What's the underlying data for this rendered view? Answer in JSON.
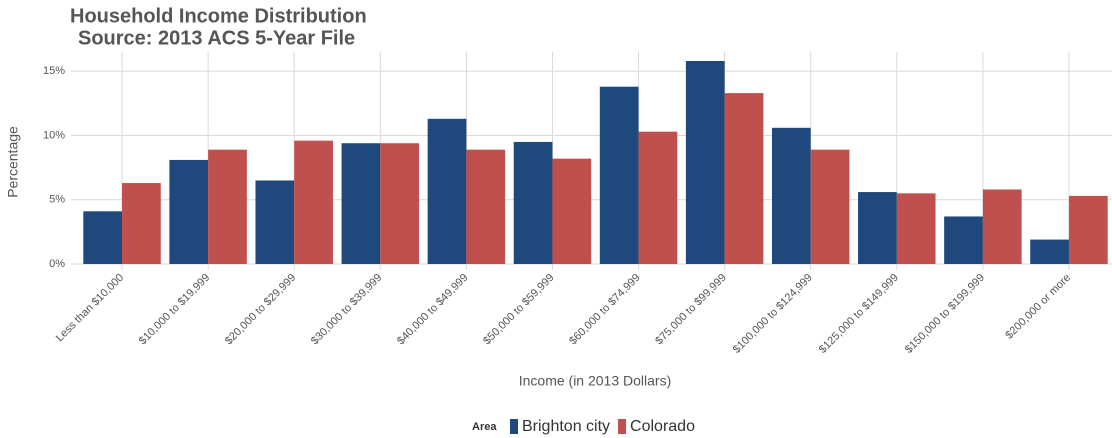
{
  "chart_data": {
    "type": "bar",
    "title": "Household Income Distribution",
    "subtitle": "Source: 2013 ACS 5-Year File",
    "x_label": "Income (in 2013 Dollars)",
    "y_label": "Percentage",
    "legend_title": "Area",
    "categories": [
      "Less than $10,000",
      "$10,000 to $19,999",
      "$20,000 to $29,999",
      "$30,000 to $39,999",
      "$40,000 to $49,999",
      "$50,000 to $59,999",
      "$60,000 to $74,999",
      "$75,000 to $99,999",
      "$100,000 to $124,999",
      "$125,000 to $149,999",
      "$150,000 to $199,999",
      "$200,000 or more"
    ],
    "series": [
      {
        "name": "Brighton city",
        "color": "#1f497d",
        "values": [
          4.1,
          8.1,
          6.5,
          9.4,
          11.3,
          9.5,
          13.8,
          15.8,
          10.6,
          5.6,
          3.7,
          1.9
        ]
      },
      {
        "name": "Colorado",
        "color": "#c0504d",
        "values": [
          6.3,
          8.9,
          9.6,
          9.4,
          8.9,
          8.2,
          10.3,
          13.3,
          8.9,
          5.5,
          5.8,
          5.3
        ]
      }
    ],
    "ylim": [
      0,
      16.5
    ],
    "yticks": [
      {
        "value": 0,
        "label": "0%"
      },
      {
        "value": 5,
        "label": "5%"
      },
      {
        "value": 10,
        "label": "10%"
      },
      {
        "value": 15,
        "label": "15%"
      }
    ],
    "grid": true
  }
}
